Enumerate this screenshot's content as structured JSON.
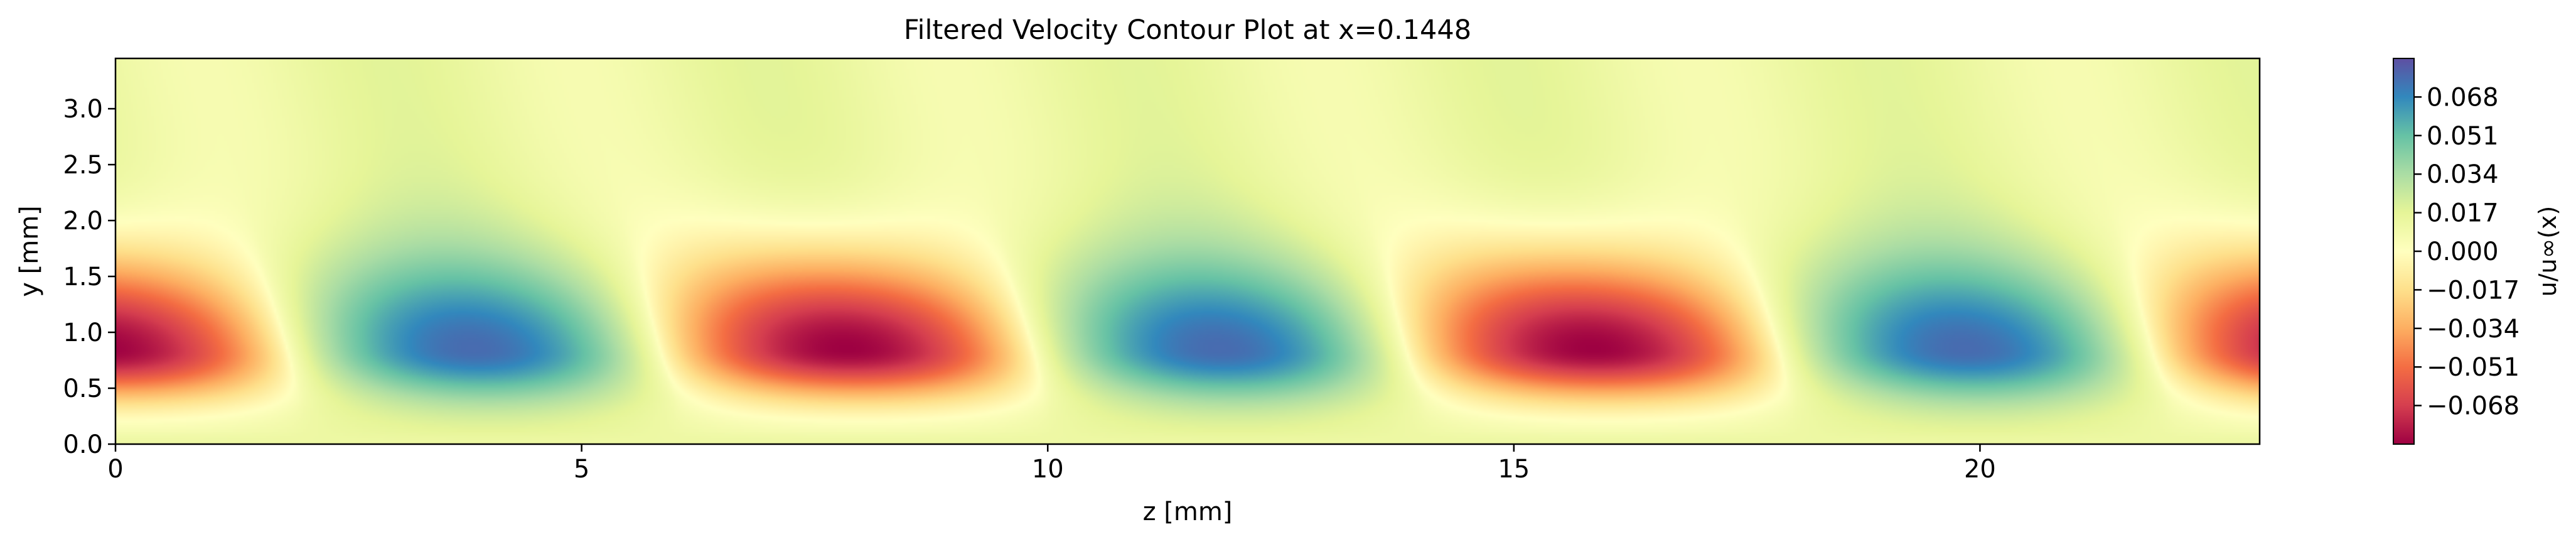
{
  "chart_data": {
    "type": "heatmap",
    "title": "Filtered Velocity Contour Plot at x=0.1448",
    "xlabel": "z [mm]",
    "ylabel": "y [mm]",
    "xlim": [
      0,
      23
    ],
    "ylim": [
      0,
      3.45
    ],
    "xticks": [
      0,
      5,
      10,
      15,
      20
    ],
    "yticks": [
      0.0,
      0.5,
      1.0,
      1.5,
      2.0,
      2.5,
      3.0
    ],
    "xtick_labels": [
      "0",
      "5",
      "10",
      "15",
      "20"
    ],
    "ytick_labels": [
      "0.0",
      "0.5",
      "1.0",
      "1.5",
      "2.0",
      "2.5",
      "3.0"
    ],
    "colormap": "Spectral",
    "colormap_stops": [
      "#9e0142",
      "#d53e4f",
      "#f46d43",
      "#fdae61",
      "#fee08b",
      "#ffffbf",
      "#e6f598",
      "#abdda4",
      "#66c2a5",
      "#3288bd",
      "#5e4fa2"
    ],
    "colorbar": {
      "label": "u/u∞(x)",
      "range": [
        -0.085,
        0.085
      ],
      "ticks": [
        0.068,
        0.051,
        0.034,
        0.017,
        0.0,
        -0.017,
        -0.034,
        -0.051,
        -0.068
      ],
      "tick_labels": [
        "0.068",
        "0.051",
        "0.034",
        "0.017",
        "0.000",
        "−0.017",
        "−0.034",
        "−0.051",
        "−0.068"
      ]
    },
    "field": {
      "description_of_pattern": "periodic streaks along z with period 8 mm, alternating negative (red) and positive (blue) extrema near y=0.85 mm",
      "period_z": 8,
      "extrema": [
        {
          "z": 0,
          "y": 0.85,
          "value": -0.07
        },
        {
          "z": 4,
          "y": 0.85,
          "value": 0.075
        },
        {
          "z": 8,
          "y": 0.85,
          "value": -0.085
        },
        {
          "z": 12,
          "y": 0.85,
          "value": 0.075
        },
        {
          "z": 16,
          "y": 0.85,
          "value": -0.085
        },
        {
          "z": 20,
          "y": 0.85,
          "value": 0.075
        }
      ],
      "peak_amplitude": 0.085,
      "background_value": 0.012
    }
  }
}
